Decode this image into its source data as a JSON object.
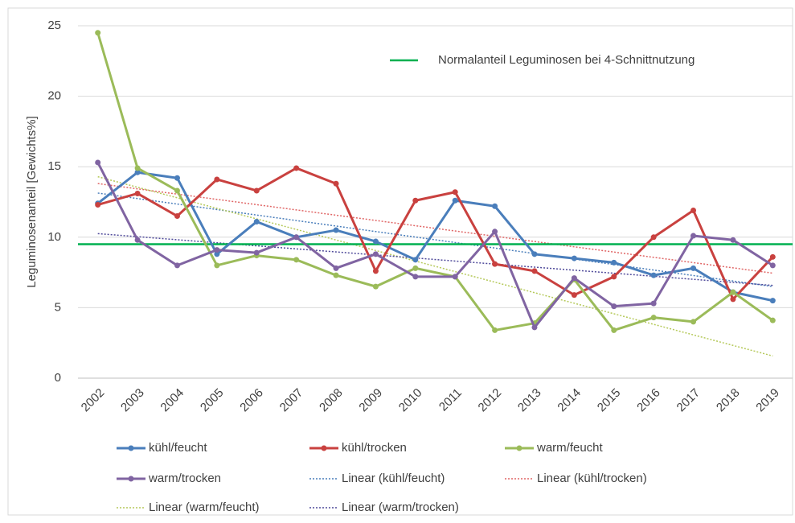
{
  "chart_data": {
    "type": "line",
    "y_label": "Leguminosenanteil [Gewichts%]",
    "categories": [
      "2002",
      "2003",
      "2004",
      "2005",
      "2006",
      "2007",
      "2008",
      "2009",
      "2010",
      "2011",
      "2012",
      "2013",
      "2014",
      "2015",
      "2016",
      "2017",
      "2018",
      "2019"
    ],
    "series": [
      {
        "name": "kühl/feucht",
        "color": "#4a7ebb",
        "values": [
          12.4,
          14.6,
          14.2,
          8.8,
          11.1,
          10.0,
          10.5,
          9.7,
          8.4,
          12.6,
          12.2,
          8.8,
          8.5,
          8.2,
          7.3,
          7.8,
          6.1,
          5.5
        ],
        "trendline": {
          "name": "Linear (kühl/feucht)",
          "color": "#4a7ebb"
        }
      },
      {
        "name": "kühl/trocken",
        "color": "#c9413f",
        "values": [
          12.3,
          13.1,
          11.5,
          14.1,
          13.3,
          14.9,
          13.8,
          7.6,
          12.6,
          13.2,
          8.1,
          7.6,
          5.9,
          7.2,
          10.0,
          11.9,
          5.6,
          8.6
        ],
        "trendline": {
          "name": "Linear (kühl/trocken)",
          "color": "#e06666"
        }
      },
      {
        "name": "warm/feucht",
        "color": "#9bbb59",
        "values": [
          24.5,
          14.9,
          13.3,
          8.0,
          8.7,
          8.4,
          7.3,
          6.5,
          7.8,
          7.2,
          3.4,
          3.9,
          7.0,
          3.4,
          4.3,
          4.0,
          6.1,
          4.1
        ],
        "trendline": {
          "name": "Linear (warm/feucht)",
          "color": "#b5c95a"
        }
      },
      {
        "name": "warm/trocken",
        "color": "#8064a2",
        "values": [
          15.3,
          9.8,
          8.0,
          9.1,
          8.9,
          10.0,
          7.8,
          8.8,
          7.2,
          7.2,
          10.4,
          3.6,
          7.1,
          5.1,
          5.3,
          10.1,
          9.8,
          8.0
        ],
        "trendline": {
          "name": "Linear (warm/trocken)",
          "color": "#4f4a9a"
        }
      }
    ],
    "reference_line": {
      "value": 9.5,
      "label": "Normalanteil Leguminosen bei 4-Schnittnutzung",
      "color": "#00b050"
    },
    "ylim": [
      0,
      25
    ],
    "yticks": [
      0,
      5,
      10,
      15,
      20,
      25
    ],
    "grid": true
  }
}
